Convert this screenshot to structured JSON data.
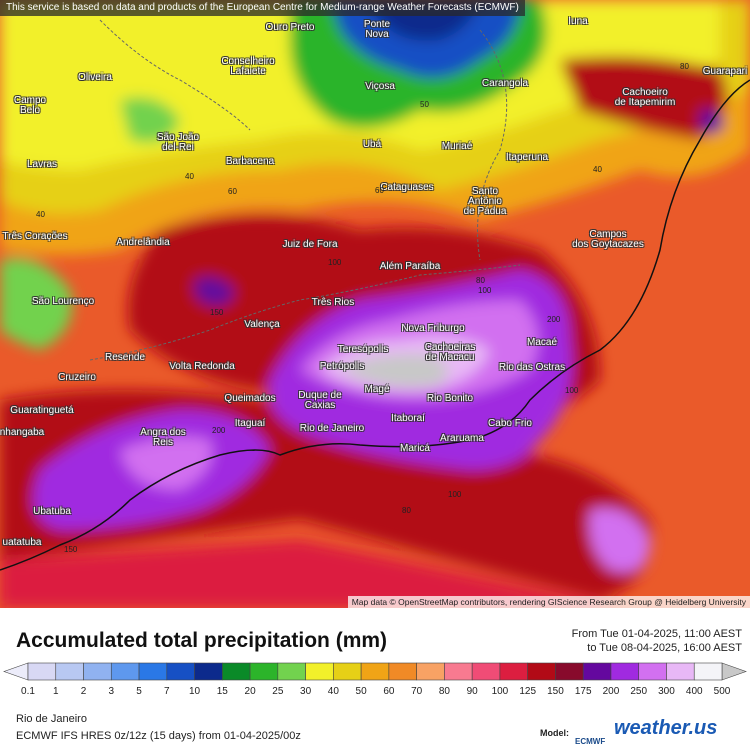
{
  "header": {
    "notice": "This service is based on data and products of the European Centre for Medium-range Weather Forecasts (ECMWF)"
  },
  "map": {
    "attribution": "Map data © OpenStreetMap contributors, rendering GIScience Research Group @ Heidelberg University",
    "cities": [
      "Ouro Preto",
      "Ponte\nNova",
      "Iuna",
      "Oliveira",
      "Conselheiro\nLafaiete",
      "Viçosa",
      "Carangola",
      "Guarapari",
      "Cachoeiro\nde Itapemirim",
      "Campo\nBelo",
      "São João\ndel-Rei",
      "Ubá",
      "Muriaé",
      "Barbacena",
      "Itaperuna",
      "Lavras",
      "Cataguases",
      "Santo\nAntônio\nde Pádua",
      "Três Corações",
      "Andrelândia",
      "Juiz de Fora",
      "Campos\ndos Goytacazes",
      "Além Paraíba",
      "São Lourenço",
      "Três Rios",
      "Valença",
      "Nova Friburgo",
      "Teresópolis",
      "Cachoeiras\nde Macacu",
      "Macaé",
      "Resende",
      "Volta Redonda",
      "Petrópolis",
      "Rio das Ostras",
      "Cruzeiro",
      "Magé",
      "Queimados",
      "Duque de\nCaxias",
      "Rio Bonito",
      "Guaratinguetá",
      "Itaboraí",
      "Itaguaí",
      "Rio de Janeiro",
      "Cabo Frio",
      "Angra dos\nReis",
      "Araruama",
      "Maricá",
      "nhangaba",
      "Ubatuba",
      "uatatuba"
    ],
    "contour_labels": [
      "40",
      "60",
      "40",
      "60",
      "40",
      "80",
      "100",
      "150",
      "80",
      "100",
      "200",
      "100",
      "80",
      "100",
      "200",
      "150",
      "50"
    ]
  },
  "footer": {
    "title": "Accumulated total precipitation (mm)",
    "period_from": "From Tue 01-04-2025, 11:00 AEST",
    "period_to": "to Tue 08-04-2025, 16:00 AEST",
    "location": "Rio de Janeiro",
    "model_run": "ECMWF IFS HRES 0z/12z (15 days) from 01-04-2025/00z",
    "model_label": "Model:",
    "model_logo": "ECMWF",
    "brand": "weather.us"
  },
  "legend": {
    "labels": [
      "0.1",
      "1",
      "2",
      "3",
      "5",
      "7",
      "10",
      "15",
      "20",
      "25",
      "30",
      "40",
      "50",
      "60",
      "70",
      "80",
      "90",
      "100",
      "125",
      "150",
      "175",
      "200",
      "250",
      "300",
      "400",
      "500"
    ],
    "colors": [
      "#d8d8f4",
      "#b8c8f2",
      "#90b2f0",
      "#5e98ee",
      "#2a78e6",
      "#1650c4",
      "#0c2a8c",
      "#0a8a28",
      "#2cb42a",
      "#72d24e",
      "#f2f02a",
      "#e6d016",
      "#f0a416",
      "#f08a26",
      "#f8a264",
      "#f87a90",
      "#f04c76",
      "#dc1e40",
      "#b20a16",
      "#880a2c",
      "#64089e",
      "#a02ae0",
      "#d270f0",
      "#e8b8f6",
      "#f4f4f8"
    ],
    "low_color": "#ececfa",
    "high_color": "#c8c8c8"
  }
}
